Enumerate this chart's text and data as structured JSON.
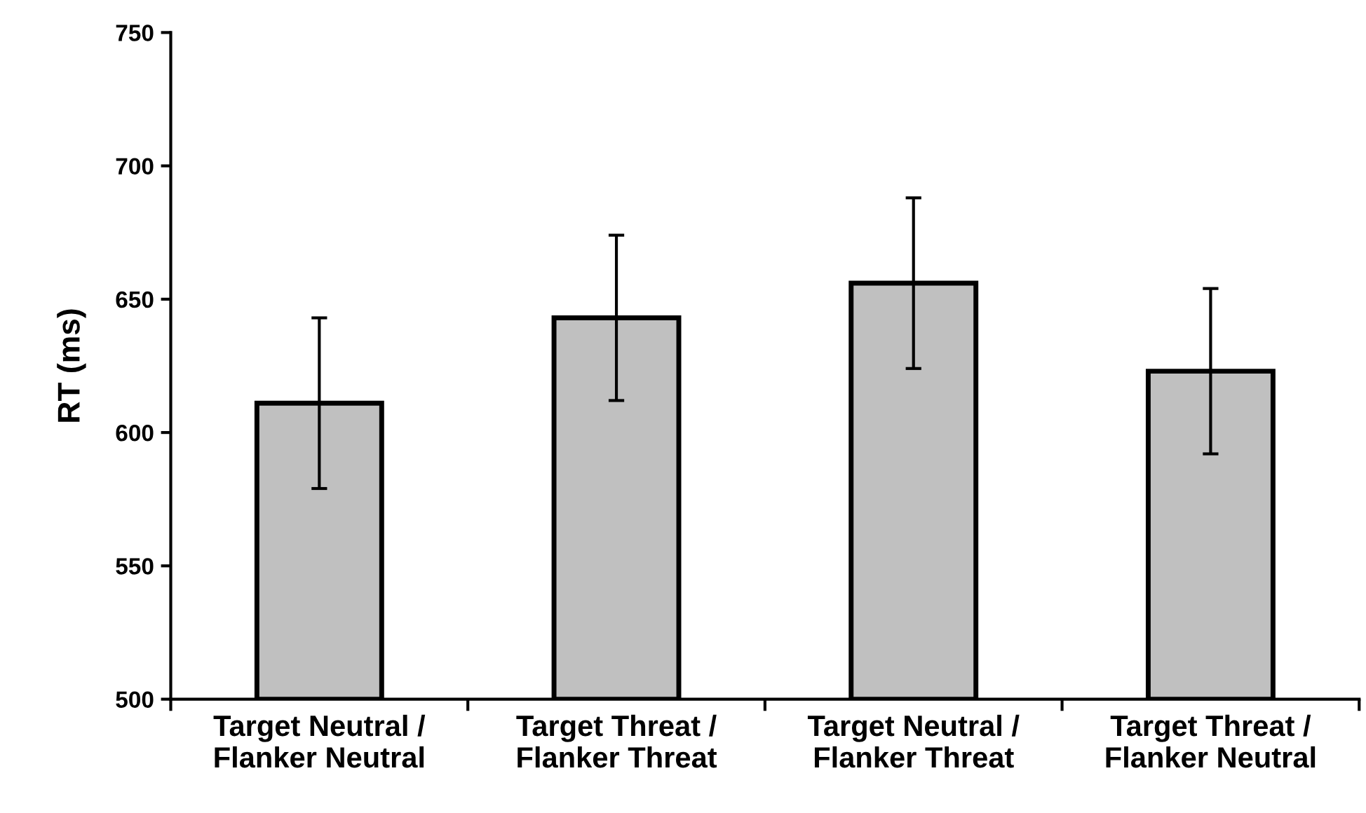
{
  "chart_data": {
    "type": "bar",
    "ylabel": "RT (ms)",
    "categories": [
      "Target Neutral /\nFlanker Neutral",
      "Target Threat /\nFlanker Threat",
      "Target Neutral /\nFlanker Threat",
      "Target Threat /\nFlanker Neutral"
    ],
    "values": [
      611,
      643,
      656,
      623
    ],
    "errors": [
      32,
      31,
      32,
      31
    ],
    "color": "#c0c0c0",
    "ylim": [
      500,
      750
    ],
    "yticks": [
      500,
      550,
      600,
      650,
      700,
      750
    ],
    "grid": false,
    "legend": false
  }
}
